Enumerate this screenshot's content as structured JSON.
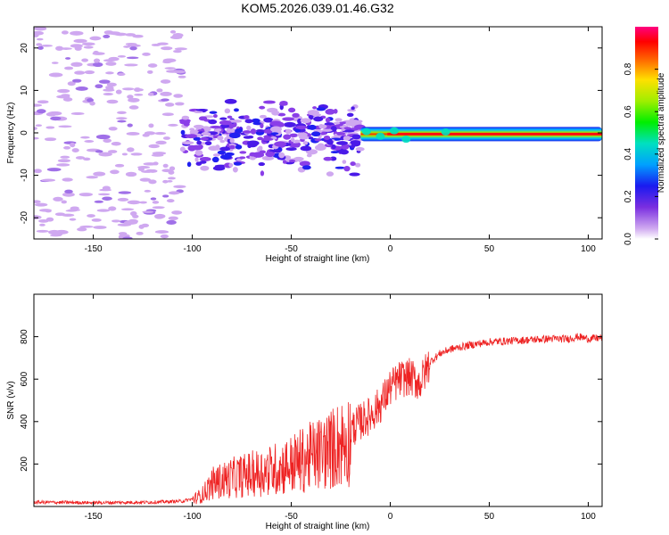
{
  "title": "KOM5.2026.039.01.46.G32",
  "chart_data": [
    {
      "type": "heatmap",
      "title": "KOM5.2026.039.01.46.G32",
      "xlabel": "Height of straight line (km)",
      "ylabel": "Frequency (Hz)",
      "xlim": [
        -180,
        107
      ],
      "ylim": [
        -25,
        25
      ],
      "x_ticks": [
        -150,
        -100,
        -50,
        0,
        50,
        100
      ],
      "y_ticks": [
        -20,
        -10,
        0,
        10,
        20
      ],
      "x_tick_labels": [
        "-150",
        "-100",
        "-50",
        "0",
        "50",
        "100"
      ],
      "y_tick_labels": [
        "-20",
        "-10",
        "0",
        "10",
        "20"
      ],
      "colorbar": {
        "label": "Normalized spectral amplitude",
        "range": [
          0,
          1
        ],
        "ticks": [
          0.0,
          0.2,
          0.4,
          0.6,
          0.8
        ],
        "tick_labels": [
          "0.0",
          "0.2",
          "0.4",
          "0.6",
          "0.8"
        ]
      },
      "signal_band": {
        "x_range": [
          -15,
          107
        ],
        "center_freq_hz": -0.3,
        "peak_amplitude": 0.95
      },
      "noise_region": {
        "x_range": [
          -180,
          -15
        ],
        "freq_range": [
          -25,
          25
        ],
        "typical_amplitude": 0.1
      }
    },
    {
      "type": "line",
      "xlabel": "Height of straight line (km)",
      "ylabel": "SNR (v/v)",
      "xlim": [
        -180,
        107
      ],
      "ylim": [
        0,
        1000
      ],
      "x_ticks": [
        -150,
        -100,
        -50,
        0,
        50,
        100
      ],
      "y_ticks": [
        200,
        400,
        600,
        800
      ],
      "x_tick_labels": [
        "-150",
        "-100",
        "-50",
        "0",
        "50",
        "100"
      ],
      "y_tick_labels": [
        "200",
        "400",
        "600",
        "800"
      ],
      "series": [
        {
          "name": "SNR",
          "color": "#ee2222",
          "x": [
            -180,
            -150,
            -120,
            -105,
            -100,
            -95,
            -90,
            -80,
            -70,
            -60,
            -50,
            -40,
            -30,
            -25,
            -20,
            -15,
            -10,
            -5,
            0,
            5,
            10,
            15,
            20,
            25,
            30,
            40,
            50,
            60,
            70,
            80,
            90,
            95,
            100,
            107
          ],
          "y": [
            20,
            18,
            20,
            25,
            35,
            60,
            120,
            150,
            170,
            190,
            220,
            260,
            300,
            330,
            360,
            400,
            430,
            480,
            560,
            600,
            610,
            580,
            680,
            720,
            740,
            760,
            775,
            780,
            785,
            790,
            790,
            800,
            790,
            795
          ]
        }
      ]
    }
  ]
}
